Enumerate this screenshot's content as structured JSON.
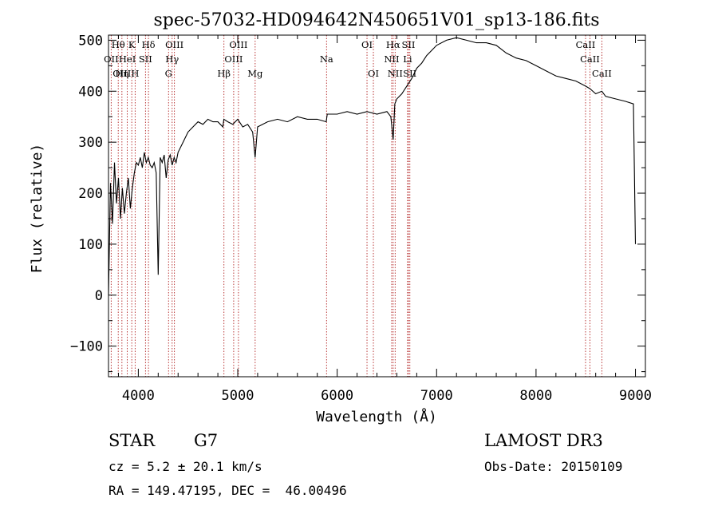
{
  "chart_data": {
    "type": "line",
    "title": "spec-57032-HD094642N450651V01_sp13-186.fits",
    "xlabel": "Wavelength (Å)",
    "ylabel": "Flux (relative)",
    "xlim": [
      3700,
      9100
    ],
    "ylim": [
      -160,
      510
    ],
    "xticks": [
      4000,
      5000,
      6000,
      7000,
      8000,
      9000
    ],
    "yticks": [
      -100,
      0,
      100,
      200,
      300,
      400,
      500
    ],
    "series": [
      {
        "name": "flux",
        "x": [
          3700,
          3720,
          3740,
          3760,
          3780,
          3800,
          3820,
          3840,
          3860,
          3880,
          3900,
          3920,
          3940,
          3960,
          3980,
          4000,
          4020,
          4040,
          4060,
          4080,
          4100,
          4120,
          4140,
          4160,
          4180,
          4200,
          4220,
          4240,
          4260,
          4280,
          4300,
          4320,
          4340,
          4360,
          4380,
          4400,
          4450,
          4500,
          4550,
          4600,
          4650,
          4700,
          4750,
          4800,
          4850,
          4860,
          4900,
          4950,
          5000,
          5050,
          5100,
          5150,
          5175,
          5200,
          5300,
          5400,
          5500,
          5600,
          5700,
          5800,
          5890,
          5900,
          6000,
          6100,
          6200,
          6300,
          6400,
          6500,
          6540,
          6563,
          6580,
          6600,
          6650,
          6700,
          6750,
          6800,
          6850,
          6900,
          6950,
          7000,
          7100,
          7200,
          7300,
          7400,
          7500,
          7600,
          7700,
          7800,
          7900,
          8000,
          8100,
          8200,
          8300,
          8400,
          8498,
          8542,
          8600,
          8662,
          8700,
          8800,
          8900,
          8980,
          9000
        ],
        "values": [
          0,
          220,
          140,
          260,
          180,
          230,
          150,
          210,
          160,
          200,
          230,
          170,
          210,
          240,
          260,
          255,
          270,
          250,
          280,
          260,
          270,
          255,
          250,
          260,
          240,
          40,
          270,
          260,
          275,
          230,
          265,
          275,
          255,
          270,
          260,
          280,
          300,
          320,
          330,
          340,
          335,
          345,
          340,
          340,
          330,
          345,
          340,
          335,
          345,
          330,
          335,
          320,
          270,
          330,
          340,
          345,
          340,
          350,
          345,
          345,
          340,
          355,
          355,
          360,
          355,
          360,
          355,
          360,
          350,
          305,
          375,
          385,
          395,
          410,
          425,
          445,
          455,
          470,
          480,
          490,
          500,
          505,
          500,
          495,
          495,
          490,
          475,
          465,
          460,
          450,
          440,
          430,
          425,
          420,
          410,
          405,
          395,
          400,
          390,
          385,
          380,
          375,
          100
        ]
      }
    ],
    "lines": [
      {
        "label": "Hθ",
        "wl": 3798,
        "row": 0
      },
      {
        "label": "K",
        "wl": 3934,
        "row": 0
      },
      {
        "label": "Hδ",
        "wl": 4102,
        "row": 0
      },
      {
        "label": "OIII",
        "wl": 4363,
        "row": 0
      },
      {
        "label": "OIII",
        "wl": 5007,
        "row": 0
      },
      {
        "label": "OI",
        "wl": 6300,
        "row": 0
      },
      {
        "label": "Hα",
        "wl": 6563,
        "row": 0
      },
      {
        "label": "SII",
        "wl": 6717,
        "row": 0
      },
      {
        "label": "CaII",
        "wl": 8498,
        "row": 0
      },
      {
        "label": "OII",
        "wl": 3727,
        "row": 1
      },
      {
        "label": "HeI",
        "wl": 3889,
        "row": 1
      },
      {
        "label": "SII",
        "wl": 4072,
        "row": 1
      },
      {
        "label": "Hγ",
        "wl": 4340,
        "row": 1
      },
      {
        "label": "OIII",
        "wl": 4959,
        "row": 1
      },
      {
        "label": "Na",
        "wl": 5893,
        "row": 1
      },
      {
        "label": "NII",
        "wl": 6548,
        "row": 1
      },
      {
        "label": "Li",
        "wl": 6708,
        "row": 1
      },
      {
        "label": "CaII",
        "wl": 8542,
        "row": 1
      },
      {
        "label": "OIII",
        "wl": 3835,
        "row": 2
      },
      {
        "label": "Hη",
        "wl": 3835,
        "row": 2
      },
      {
        "label": "H",
        "wl": 3968,
        "row": 2
      },
      {
        "label": "G",
        "wl": 4304,
        "row": 2
      },
      {
        "label": "Hβ",
        "wl": 4861,
        "row": 2
      },
      {
        "label": "Mg",
        "wl": 5175,
        "row": 2
      },
      {
        "label": "OI",
        "wl": 6364,
        "row": 2
      },
      {
        "label": "NII",
        "wl": 6583,
        "row": 2
      },
      {
        "label": "SII",
        "wl": 6731,
        "row": 2
      },
      {
        "label": "CaII",
        "wl": 8662,
        "row": 2
      }
    ]
  },
  "info": {
    "object_class": "STAR",
    "subclass": "G7",
    "survey": "LAMOST DR3",
    "redshift": "cz = 5.2 ± 20.1 km/s",
    "obs_date": "Obs-Date: 20150109",
    "coords": "RA = 149.47195, DEC =  46.00496"
  }
}
